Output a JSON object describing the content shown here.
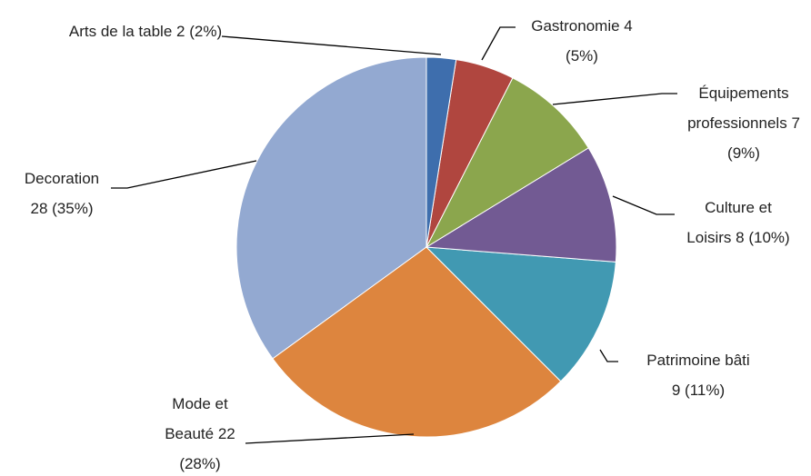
{
  "chart_data": {
    "type": "pie",
    "categories": [
      "Arts de la table",
      "Gastronomie",
      "Équipements professionnels",
      "Culture et Loisirs",
      "Patrimoine bâti",
      "Mode et Beauté",
      "Decoration"
    ],
    "values": [
      2,
      4,
      7,
      8,
      9,
      22,
      28
    ],
    "value_labels": [
      "2 (2%)",
      "4 (5%)",
      "7 (9%)",
      "8 (10%)",
      "9 (11%)",
      "22 (28%)",
      "28 (35%)"
    ],
    "colors": [
      "#3e6ead",
      "#b0463f",
      "#8ba64d",
      "#725a93",
      "#4199b2",
      "#dd853e",
      "#93a9d1"
    ]
  }
}
